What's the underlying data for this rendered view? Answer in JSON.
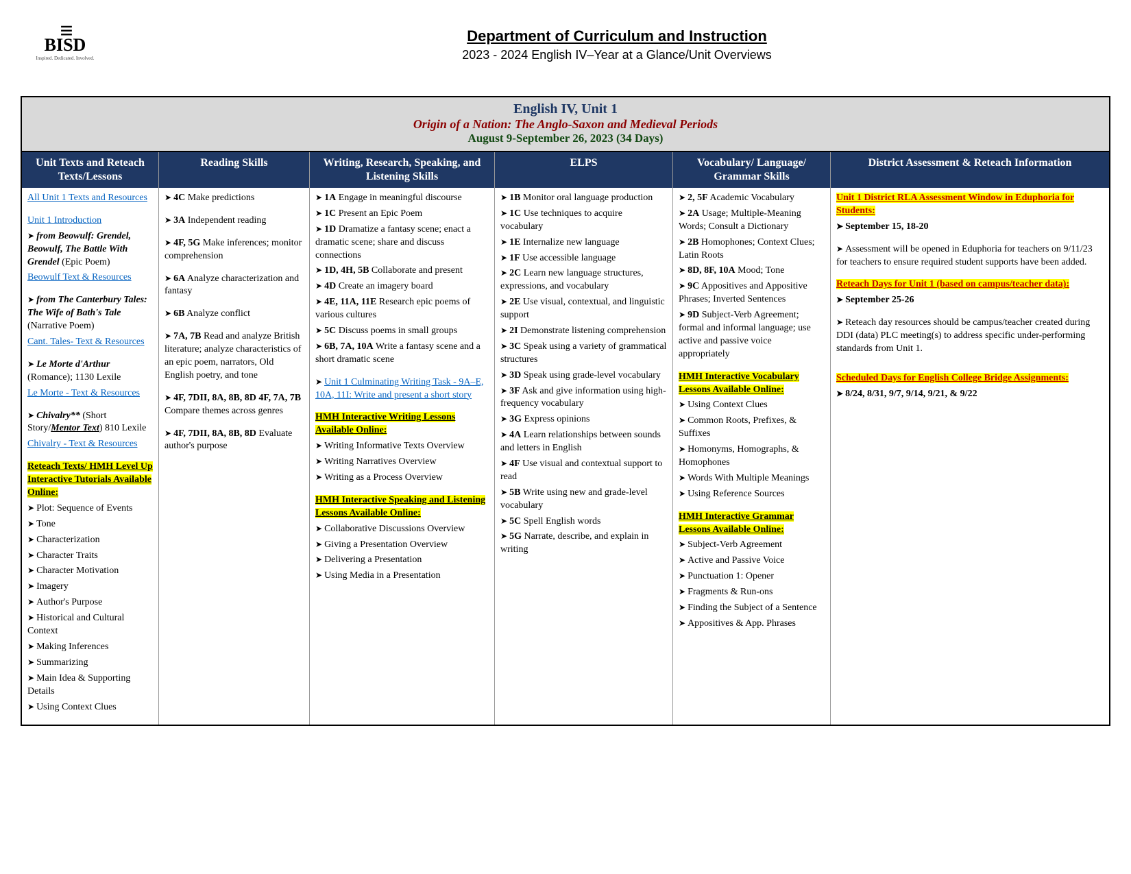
{
  "header": {
    "logo_main": "BISD",
    "logo_sub": "Inspired. Dedicated. Involved.",
    "dept": "Department of Curriculum and Instruction",
    "subtitle": "2023 - 2024 English IV–Year at a Glance/Unit Overviews"
  },
  "unit_header": {
    "line1": "English IV, Unit 1",
    "line2": "Origin of a Nation: The Anglo-Saxon and Medieval Periods",
    "line3": "August 9-September 26, 2023  (34 Days)"
  },
  "columns": [
    "Unit Texts and Reteach Texts/Lessons",
    "Reading Skills",
    "Writing, Research, Speaking, and Listening Skills",
    "ELPS",
    "Vocabulary/ Language/ Grammar Skills",
    "District Assessment & Reteach Information"
  ],
  "col1": {
    "all_texts": "All Unit 1 Texts and Resources",
    "intro": "Unit 1 Introduction",
    "beowulf_from": "from Beowulf: Grendel, Beowulf, The Battle With Grendel",
    "beowulf_genre": " (Epic Poem)",
    "beowulf_link": "Beowulf Text & Resources",
    "cant_from": "from The Canterbury Tales: The Wife of Bath's Tale",
    "cant_genre": " (Narrative Poem)",
    "cant_link": "Cant. Tales- Text & Resources",
    "morte": "Le Morte d'Arthur",
    "morte_genre": " (Romance); 1130 Lexile",
    "morte_link": "Le Morte - Text & Resources",
    "chivalry": "Chivalry**",
    "chivalry_genre": " (Short Story/",
    "mentor": "Mentor Text",
    "chivalry_close": ") 810 Lexile",
    "chivalry_link": "Chivalry - Text & Resources",
    "reteach_heading": "Reteach Texts/ HMH Level Up Interactive Tutorials Available Online:",
    "reteach_items": [
      "Plot: Sequence of Events",
      "Tone",
      "Characterization",
      "Character Traits",
      "Character Motivation",
      "Imagery",
      "Author's Purpose",
      "Historical and Cultural Context",
      "Making Inferences",
      "Summarizing",
      "Main Idea & Supporting Details",
      "Using Context Clues"
    ]
  },
  "col2": {
    "items": [
      {
        "code": "4C",
        "text": " Make predictions"
      },
      {
        "code": "3A",
        "text": " Independent reading"
      },
      {
        "code": "4F, 5G",
        "text": " Make inferences; monitor comprehension"
      },
      {
        "code": "6A",
        "text": " Analyze characterization and fantasy"
      },
      {
        "code": "6B",
        "text": " Analyze conflict"
      },
      {
        "code": "7A, 7B",
        "text": " Read and analyze British literature; analyze characteristics of an epic poem, narrators, Old English poetry, and tone"
      },
      {
        "code": "4F, 7DII, 8A, 8B, 8D 4F, 7A, 7B",
        "text": " Compare themes across genres"
      },
      {
        "code": "4F, 7DII, 8A, 8B, 8D",
        "text": " Evaluate author's purpose"
      }
    ]
  },
  "col3": {
    "items": [
      {
        "code": "1A",
        "text": " Engage in meaningful discourse"
      },
      {
        "code": "1C",
        "text": " Present an Epic Poem"
      },
      {
        "code": "1D",
        "text": " Dramatize a fantasy scene; enact a dramatic scene; share and discuss connections"
      },
      {
        "code": "1D, 4H, 5B",
        "text": " Collaborate and present"
      },
      {
        "code": "4D",
        "text": " Create an imagery board"
      },
      {
        "code": "4E, 11A, 11E",
        "text": " Research epic poems of various cultures"
      },
      {
        "code": "5C",
        "text": " Discuss poems in small groups"
      },
      {
        "code": "6B, 7A, 10A",
        "text": " Write a fantasy scene and a short dramatic scene"
      }
    ],
    "culminating_link": "Unit 1 Culminating Writing Task - 9A–E, 10A, 11I:",
    "culminating_rest": " Write and present a short story",
    "writing_heading": "HMH Interactive Writing Lessons Available Online:",
    "writing_items": [
      "Writing Informative Texts Overview",
      "Writing Narratives Overview",
      "Writing as a Process Overview"
    ],
    "speaking_heading": "HMH Interactive Speaking and Listening Lessons Available Online:",
    "speaking_items": [
      "Collaborative Discussions Overview",
      "Giving a Presentation Overview",
      "Delivering a Presentation",
      "Using Media in a Presentation"
    ]
  },
  "col4": {
    "items": [
      {
        "code": "1B",
        "text": " Monitor oral language production"
      },
      {
        "code": "1C",
        "text": " Use techniques to acquire vocabulary"
      },
      {
        "code": "1E",
        "text": " Internalize new language"
      },
      {
        "code": "1F",
        "text": " Use accessible language"
      },
      {
        "code": "2C",
        "text": " Learn new language structures, expressions, and vocabulary"
      },
      {
        "code": "2E",
        "text": " Use visual, contextual, and linguistic support"
      },
      {
        "code": "2I",
        "text": " Demonstrate listening comprehension"
      },
      {
        "code": "3C",
        "text": " Speak using a variety of grammatical structures"
      },
      {
        "code": "3D",
        "text": " Speak using grade-level vocabulary"
      },
      {
        "code": "3F",
        "text": " Ask and give information using high-frequency vocabulary"
      },
      {
        "code": "3G",
        "text": " Express opinions"
      },
      {
        "code": "4A",
        "text": " Learn relationships between sounds and letters in English"
      },
      {
        "code": "4F",
        "text": " Use visual and contextual support to read"
      },
      {
        "code": "5B",
        "text": " Write using new and grade-level vocabulary"
      },
      {
        "code": "5C",
        "text": " Spell English words"
      },
      {
        "code": "5G",
        "text": " Narrate, describe, and explain in writing"
      }
    ]
  },
  "col5": {
    "items": [
      {
        "code": "2, 5F",
        "text": " Academic Vocabulary"
      },
      {
        "code": "2A",
        "text": " Usage; Multiple-Meaning Words; Consult a Dictionary"
      },
      {
        "code": "2B",
        "text": " Homophones; Context Clues; Latin Roots"
      },
      {
        "code": "8D, 8F, 10A",
        "text": " Mood; Tone"
      },
      {
        "code": "9C",
        "text": " Appositives and Appositive Phrases; Inverted Sentences"
      },
      {
        "code": "9D",
        "text": " Subject-Verb Agreement; formal and informal language; use active and passive voice appropriately"
      }
    ],
    "vocab_heading": "HMH Interactive Vocabulary Lessons Available Online:",
    "vocab_items": [
      "Using Context Clues",
      "Common Roots, Prefixes, & Suffixes",
      "Homonyms, Homographs, & Homophones",
      "Words With Multiple Meanings",
      "Using Reference Sources"
    ],
    "grammar_heading": "HMH Interactive Grammar Lessons Available Online:",
    "grammar_items": [
      "Subject-Verb Agreement",
      "Active and Passive Voice",
      "Punctuation 1: Opener",
      "Fragments & Run-ons",
      "Finding the Subject of a Sentence",
      "Appositives & App. Phrases"
    ]
  },
  "col6": {
    "rla": "Unit 1 District RLA Assessment Window in Eduphoria for Students:",
    "rla_date": "September 15, 18-20",
    "assessment_note": "Assessment will be opened in Eduphoria for teachers on 9/11/23 for teachers to ensure required student supports have been added.",
    "reteach_heading": "Reteach Days for Unit 1 (based on campus/teacher data):",
    "reteach_date": "September 25-26",
    "reteach_note": "Reteach day resources should be campus/teacher created during DDI (data) PLC meeting(s) to address specific under-performing standards from Unit 1.",
    "bridge_heading": "Scheduled Days for English College Bridge Assignments:",
    "bridge_dates": "8/24, 8/31, 9/7, 9/14, 9/21, & 9/22"
  }
}
